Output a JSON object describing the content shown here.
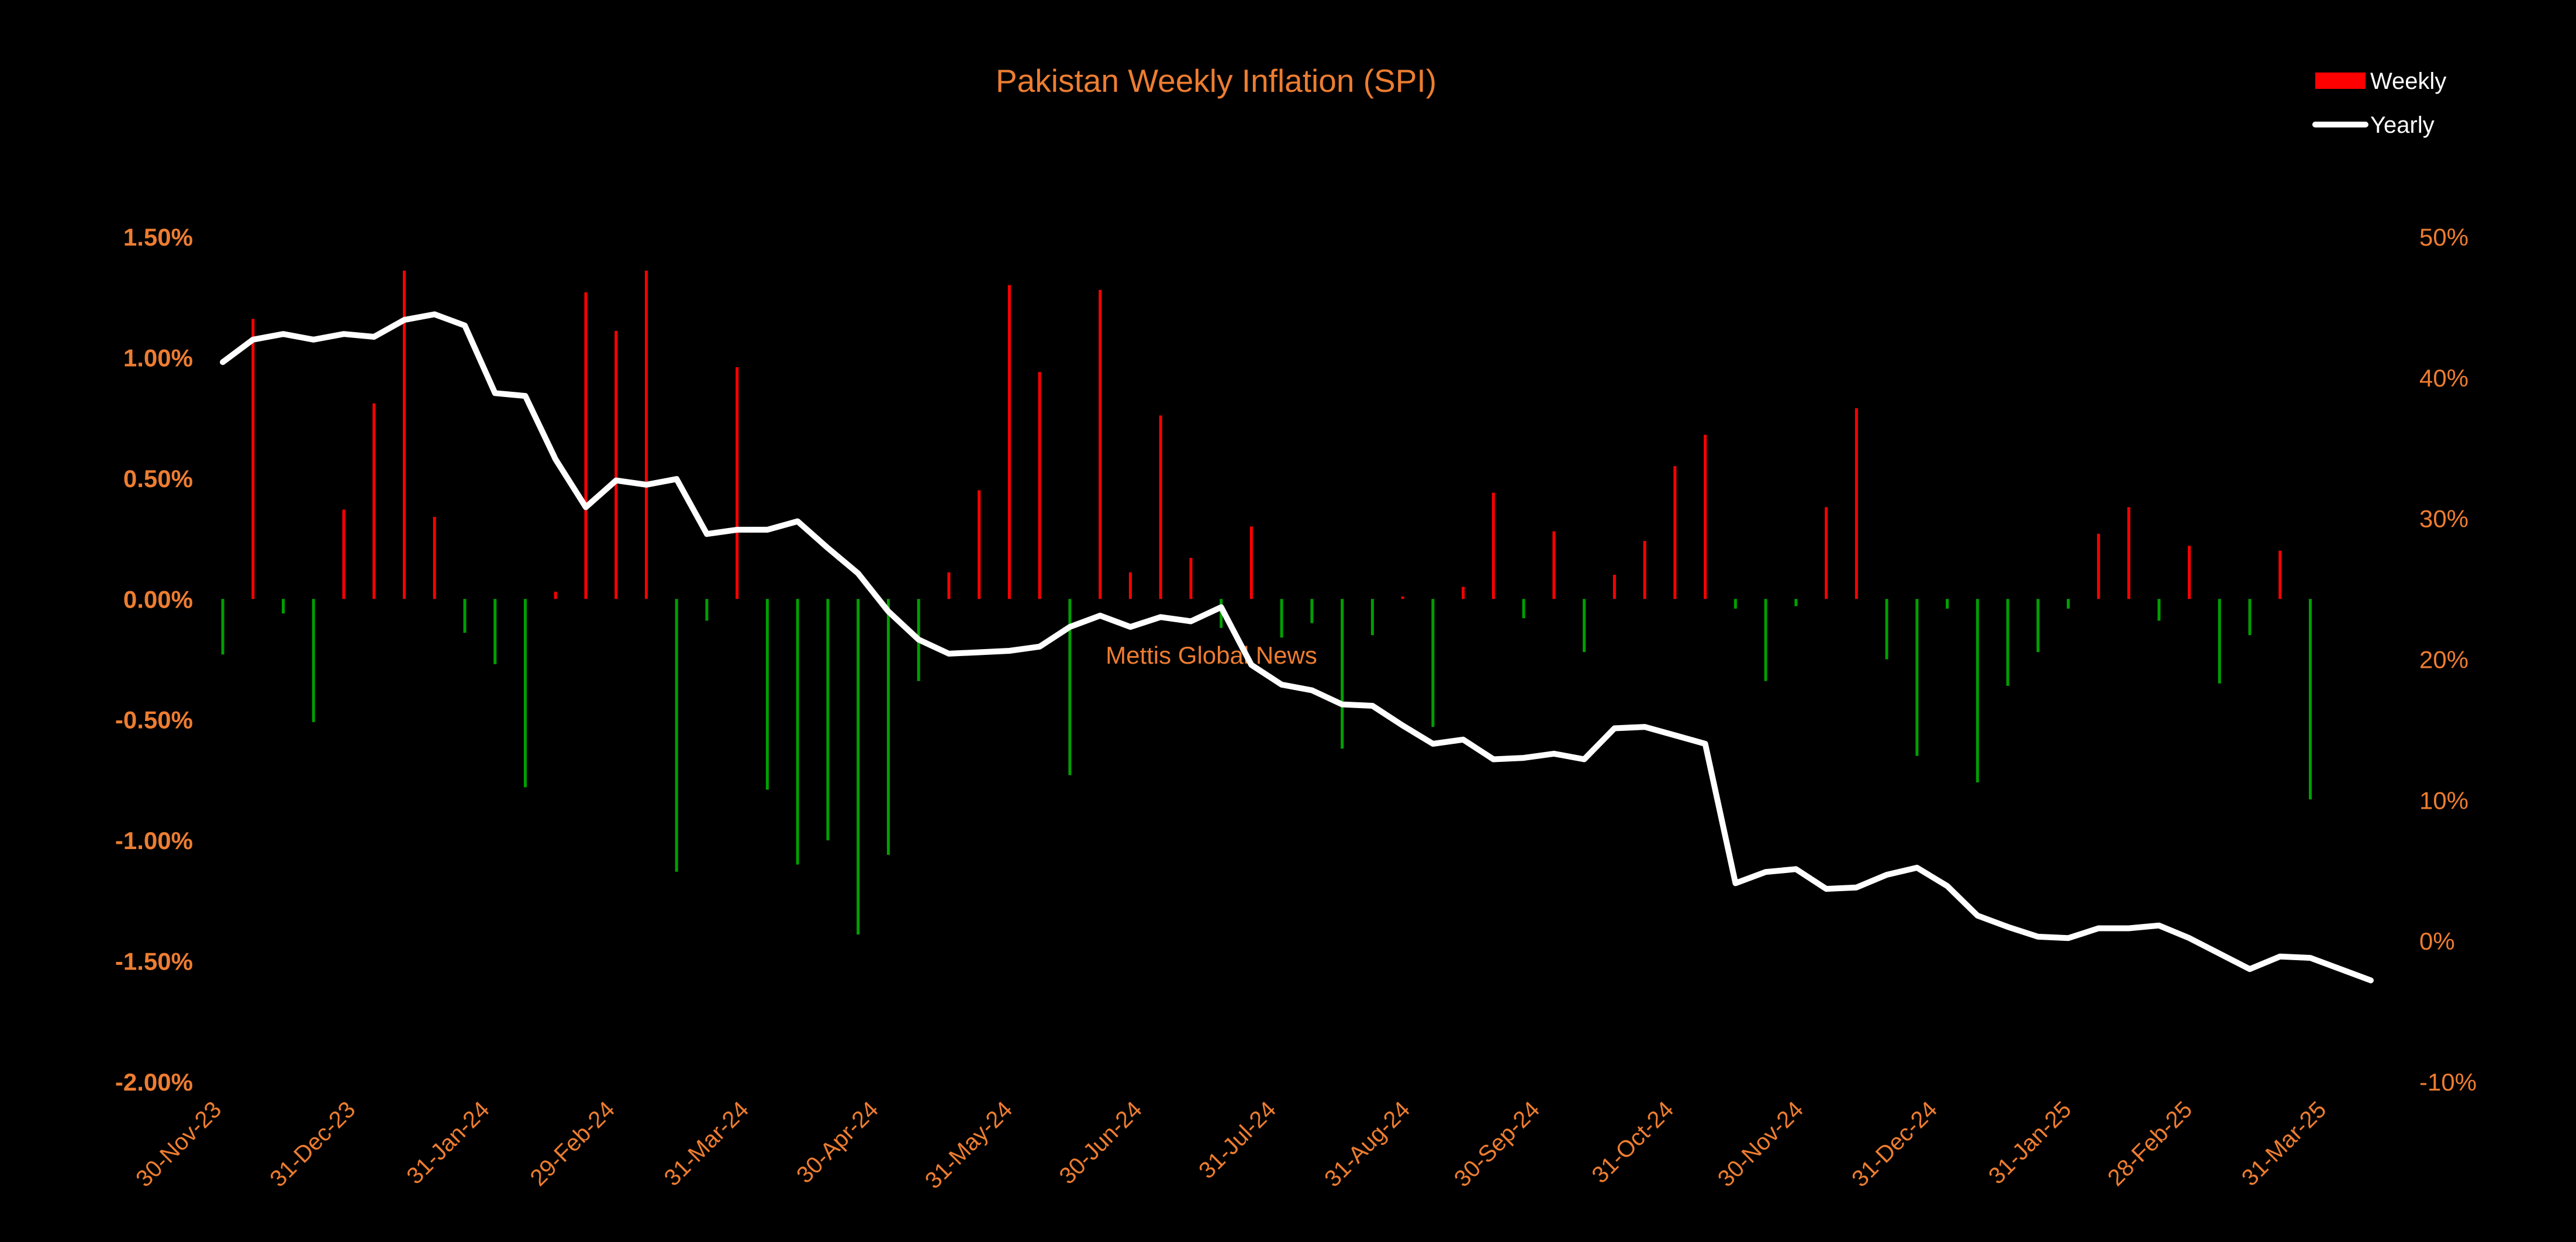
{
  "chart_data": {
    "type": "bar+line",
    "title": "Pakistan Weekly Inflation (SPI)",
    "watermark": "Mettis Global News",
    "legend": {
      "placement": "top-right",
      "entries": [
        {
          "label": "Weekly",
          "kind": "bar",
          "color": "#FF0000"
        },
        {
          "label": "Yearly",
          "kind": "line",
          "color": "#FFFFFF"
        }
      ]
    },
    "colors": {
      "positive": "#FF0000",
      "negative": "#00A000",
      "line": "#FFFFFF",
      "text": "#ED7D31"
    },
    "y_left": {
      "min": -2.0,
      "max": 1.5,
      "unit": "%",
      "ticks": [
        "1.50%",
        "1.00%",
        "0.50%",
        "0.00%",
        "-0.50%",
        "-1.00%",
        "-1.50%",
        "-2.00%"
      ]
    },
    "y_right": {
      "min": -10,
      "max": 50,
      "unit": "%",
      "ticks": [
        "50%",
        "40%",
        "30%",
        "20%",
        "10%",
        "0%",
        "-10%"
      ]
    },
    "x_tick_labels": [
      "30-Nov-23",
      "31-Dec-23",
      "31-Jan-24",
      "29-Feb-24",
      "31-Mar-24",
      "30-Apr-24",
      "31-May-24",
      "30-Jun-24",
      "31-Jul-24",
      "31-Aug-24",
      "30-Sep-24",
      "31-Oct-24",
      "30-Nov-24",
      "31-Dec-24",
      "31-Jan-25",
      "28-Feb-25",
      "31-Mar-25"
    ],
    "x_tick_dates": [
      "2023-11-30",
      "2023-12-31",
      "2024-01-31",
      "2024-02-29",
      "2024-03-31",
      "2024-04-30",
      "2024-05-31",
      "2024-06-30",
      "2024-07-31",
      "2024-08-31",
      "2024-09-30",
      "2024-10-31",
      "2024-11-30",
      "2024-12-31",
      "2025-01-31",
      "2025-02-28",
      "2025-03-31"
    ],
    "x_range": [
      "2023-11-30",
      "2025-04-15"
    ],
    "dates": [
      "2023-11-30",
      "2023-12-07",
      "2023-12-14",
      "2023-12-21",
      "2023-12-28",
      "2024-01-04",
      "2024-01-11",
      "2024-01-18",
      "2024-01-25",
      "2024-02-01",
      "2024-02-08",
      "2024-02-15",
      "2024-02-22",
      "2024-02-29",
      "2024-03-07",
      "2024-03-14",
      "2024-03-21",
      "2024-03-28",
      "2024-04-04",
      "2024-04-11",
      "2024-04-18",
      "2024-04-25",
      "2024-05-02",
      "2024-05-09",
      "2024-05-16",
      "2024-05-23",
      "2024-05-30",
      "2024-06-06",
      "2024-06-13",
      "2024-06-20",
      "2024-06-27",
      "2024-07-04",
      "2024-07-11",
      "2024-07-18",
      "2024-07-25",
      "2024-08-01",
      "2024-08-08",
      "2024-08-15",
      "2024-08-22",
      "2024-08-29",
      "2024-09-05",
      "2024-09-12",
      "2024-09-19",
      "2024-09-26",
      "2024-10-03",
      "2024-10-10",
      "2024-10-17",
      "2024-10-24",
      "2024-10-31",
      "2024-11-07",
      "2024-11-14",
      "2024-11-21",
      "2024-11-28",
      "2024-12-05",
      "2024-12-12",
      "2024-12-19",
      "2024-12-26",
      "2025-01-02",
      "2025-01-09",
      "2025-01-16",
      "2025-01-23",
      "2025-01-30",
      "2025-02-06",
      "2025-02-13",
      "2025-02-20",
      "2025-02-27",
      "2025-03-06",
      "2025-03-13",
      "2025-03-20",
      "2025-03-27",
      "2025-04-03",
      "2025-04-10"
    ],
    "series": [
      {
        "name": "Weekly",
        "type": "bar",
        "unit": "%",
        "values": [
          -0.23,
          1.16,
          -0.06,
          -0.51,
          0.37,
          0.81,
          1.36,
          0.34,
          -0.14,
          -0.27,
          -0.78,
          0.03,
          1.27,
          1.11,
          1.36,
          -1.13,
          -0.09,
          0.96,
          -0.79,
          -1.1,
          -1.0,
          -1.39,
          -1.06,
          -0.34,
          0.11,
          0.45,
          1.3,
          0.94,
          -0.73,
          1.28,
          0.11,
          0.76,
          0.17,
          -0.12,
          0.3,
          -0.16,
          -0.1,
          -0.62,
          -0.15,
          0.01,
          -0.53,
          0.05,
          0.44,
          -0.08,
          0.28,
          -0.22,
          0.1,
          0.24,
          0.55,
          0.68,
          -0.04,
          -0.34,
          -0.03,
          0.38,
          0.79,
          -0.25,
          -0.65,
          -0.04,
          -0.76,
          -0.36,
          -0.22,
          -0.04,
          0.27,
          0.38,
          -0.09,
          0.22,
          -0.35,
          -0.15,
          0.2,
          -0.83,
          0.0,
          0.0
        ]
      },
      {
        "name": "Yearly",
        "type": "line",
        "unit": "%",
        "values": [
          41.1,
          42.7,
          43.1,
          42.7,
          43.1,
          42.9,
          44.1,
          44.5,
          43.7,
          38.9,
          38.7,
          34.2,
          30.8,
          32.7,
          32.4,
          32.8,
          28.9,
          29.2,
          29.2,
          29.8,
          27.9,
          26.1,
          23.4,
          21.4,
          20.4,
          20.5,
          20.6,
          20.9,
          22.3,
          23.1,
          22.3,
          23.0,
          22.7,
          23.7,
          19.6,
          18.2,
          17.8,
          16.8,
          16.7,
          15.3,
          14.0,
          14.3,
          12.9,
          13.0,
          13.3,
          12.9,
          15.1,
          15.2,
          14.6,
          14.0,
          4.1,
          4.9,
          5.1,
          3.7,
          3.8,
          4.7,
          5.2,
          3.9,
          1.8,
          1.0,
          0.3,
          0.2,
          0.9,
          0.9,
          1.1,
          0.2,
          -0.9,
          -2.0,
          -1.1,
          -1.2,
          -2.0,
          -2.8
        ]
      }
    ]
  }
}
